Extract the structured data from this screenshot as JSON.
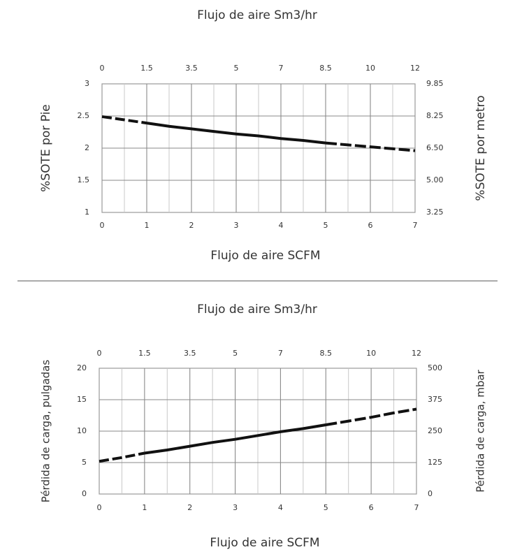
{
  "chart_data": [
    {
      "type": "line",
      "title": "Flujo de aire Sm3/hr",
      "xlabel": "Flujo de aire SCFM",
      "ylabel": "%SOTE por Pie",
      "y2label": "%SOTE por metro",
      "x_ticks": [
        "0",
        "1",
        "2",
        "3",
        "4",
        "5",
        "6",
        "7"
      ],
      "x_top_ticks": [
        "0",
        "1.5",
        "3.5",
        "5",
        "7",
        "8.5",
        "10",
        "12"
      ],
      "y_ticks": [
        "3",
        "2.5",
        "2",
        "1.5",
        "1"
      ],
      "y2_ticks": [
        "9.85",
        "8.25",
        "6.50",
        "5.00",
        "3.25"
      ],
      "xlim": [
        0,
        7
      ],
      "ylim": [
        1,
        3
      ],
      "grid": true,
      "series": [
        {
          "x": [
            0,
            0.5,
            1,
            1.5,
            2,
            2.5,
            3,
            3.5,
            4,
            4.5,
            5,
            5.5,
            6,
            6.5,
            7
          ],
          "y": [
            2.49,
            2.44,
            2.39,
            2.34,
            2.3,
            2.26,
            2.22,
            2.19,
            2.15,
            2.12,
            2.08,
            2.05,
            2.02,
            1.99,
            1.96
          ],
          "style": "dashed-ends"
        }
      ]
    },
    {
      "type": "line",
      "title": "Flujo de aire Sm3/hr",
      "xlabel": "Flujo de aire SCFM",
      "ylabel": "Pérdida de carga, pulgadas",
      "y2label": "Pérdida de carga, mbar",
      "x_ticks": [
        "0",
        "1",
        "2",
        "3",
        "4",
        "5",
        "6",
        "7"
      ],
      "x_top_ticks": [
        "0",
        "1.5",
        "3.5",
        "5",
        "7",
        "8.5",
        "10",
        "12"
      ],
      "y_ticks": [
        "20",
        "15",
        "10",
        "5",
        "0"
      ],
      "y2_ticks": [
        "500",
        "375",
        "250",
        "125",
        "0"
      ],
      "xlim": [
        0,
        7
      ],
      "ylim": [
        0,
        20
      ],
      "grid": true,
      "series": [
        {
          "x": [
            0,
            0.5,
            1,
            1.5,
            2,
            2.5,
            3,
            3.5,
            4,
            4.5,
            5,
            5.5,
            6,
            6.5,
            7
          ],
          "y": [
            5.2,
            5.8,
            6.5,
            7.0,
            7.6,
            8.2,
            8.7,
            9.3,
            9.9,
            10.4,
            11.0,
            11.6,
            12.2,
            12.9,
            13.5
          ],
          "style": "dashed-ends"
        }
      ]
    }
  ]
}
